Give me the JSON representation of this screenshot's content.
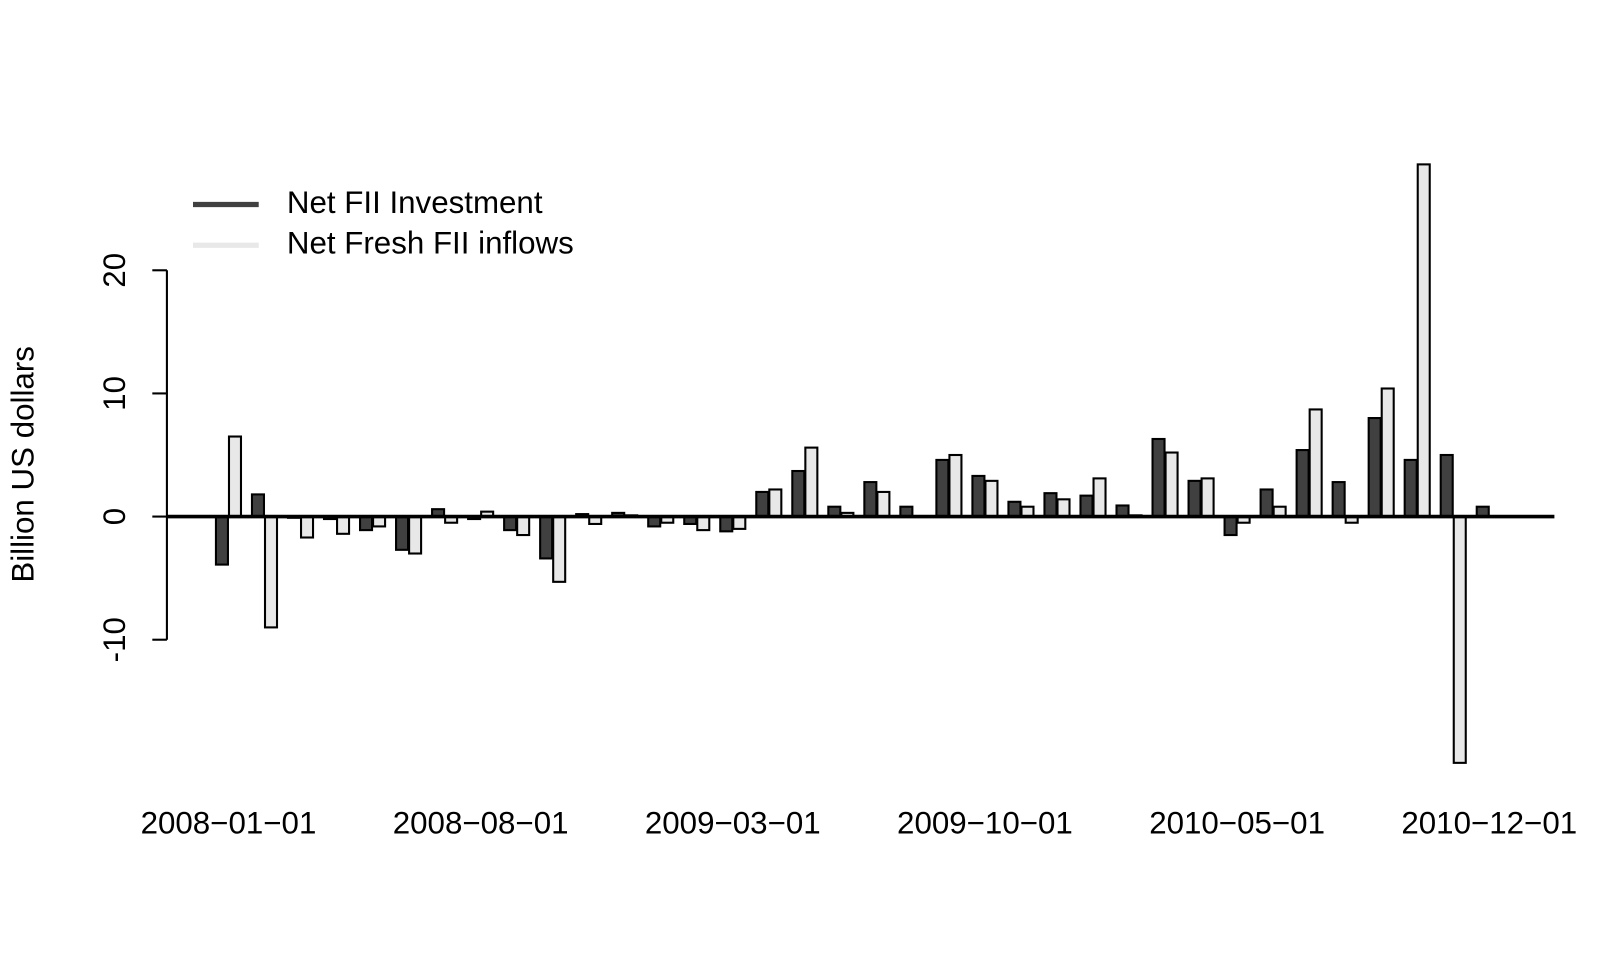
{
  "chart_data": {
    "type": "bar",
    "ylabel": "Billion US dollars",
    "categories": [
      "2008−01−01",
      null,
      null,
      null,
      null,
      null,
      null,
      "2008−08−01",
      null,
      null,
      null,
      null,
      null,
      null,
      "2009−03−01",
      null,
      null,
      null,
      null,
      null,
      null,
      "2009−10−01",
      null,
      null,
      null,
      null,
      null,
      null,
      "2010−05−01",
      null,
      null,
      null,
      null,
      null,
      null,
      "2010−12−01"
    ],
    "series": [
      {
        "name": "Net FII Investment",
        "color": "#404040",
        "values": [
          -3.9,
          1.8,
          -0.1,
          -0.2,
          -1.1,
          -2.7,
          0.6,
          -0.2,
          -1.1,
          -3.4,
          0.2,
          0.3,
          -0.8,
          -0.6,
          -1.2,
          2.0,
          3.7,
          0.8,
          2.8,
          0.8,
          4.6,
          3.3,
          1.2,
          1.9,
          1.7,
          0.9,
          6.3,
          2.9,
          -1.5,
          2.2,
          5.4,
          2.8,
          8.0,
          4.6,
          5.0,
          0.8
        ]
      },
      {
        "name": "Net Fresh FII inflows",
        "color": "#e8e8e8",
        "values": [
          6.5,
          -9.0,
          -1.7,
          -1.4,
          -0.8,
          -3.0,
          -0.5,
          0.4,
          -1.5,
          -5.3,
          -0.6,
          0.1,
          -0.5,
          -1.1,
          -1.0,
          2.2,
          5.6,
          0.3,
          2.0,
          0.0,
          5.0,
          2.9,
          0.8,
          1.4,
          3.1,
          0.1,
          5.2,
          3.1,
          -0.5,
          0.8,
          8.7,
          -0.5,
          10.4,
          28.6,
          -20.0,
          0.0
        ]
      }
    ],
    "ylim": [
      -22,
      30
    ],
    "yticks": [
      -10,
      0,
      10,
      20
    ],
    "legend": "top-left"
  }
}
